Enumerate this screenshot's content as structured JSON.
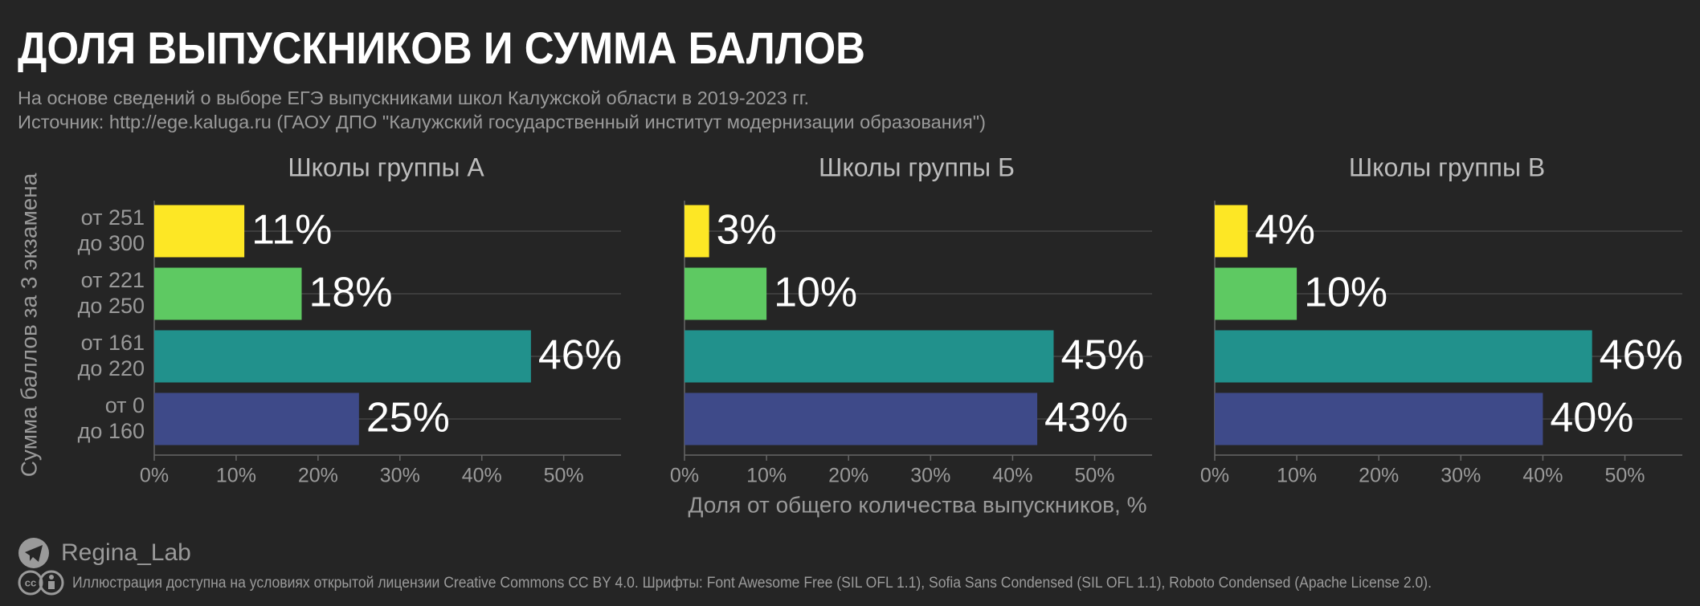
{
  "header": {
    "title": "ДОЛЯ ВЫПУСКНИКОВ И СУММА БАЛЛОВ",
    "subtitle": "На основе сведений о выборе ЕГЭ выпускниками школ Калужской области в 2019-2023 гг.",
    "source": "Источник: http://ege.kaluga.ru (ГАОУ ДПО \"Калужский государственный институт модернизации образования\")"
  },
  "axes": {
    "y_label": "Сумма баллов за 3 экзамена",
    "x_label": "Доля от общего количества выпускников, %"
  },
  "chart_data": [
    {
      "type": "bar",
      "orientation": "horizontal",
      "title": "Школы группы А",
      "categories": [
        [
          "от 251",
          "до 300"
        ],
        [
          "от 221",
          "до 250"
        ],
        [
          "от 161",
          "до 220"
        ],
        [
          "от 0",
          "до 160"
        ]
      ],
      "values": [
        11,
        18,
        46,
        25
      ],
      "value_labels": [
        "11%",
        "18%",
        "46%",
        "25%"
      ],
      "colors": [
        "#fde725",
        "#5ec962",
        "#21918c",
        "#3e4a89"
      ],
      "xlim": [
        0,
        57
      ],
      "xticks": [
        {
          "value": 0,
          "label": "0%"
        },
        {
          "value": 10,
          "label": "10%"
        },
        {
          "value": 20,
          "label": "20%"
        },
        {
          "value": 30,
          "label": "30%"
        },
        {
          "value": 40,
          "label": "40%"
        },
        {
          "value": 50,
          "label": "50%"
        }
      ],
      "grid": true
    },
    {
      "type": "bar",
      "orientation": "horizontal",
      "title": "Школы группы Б",
      "categories": [
        [
          "от 251",
          "до 300"
        ],
        [
          "от 221",
          "до 250"
        ],
        [
          "от 161",
          "до 220"
        ],
        [
          "от 0",
          "до 160"
        ]
      ],
      "values": [
        3,
        10,
        45,
        43
      ],
      "value_labels": [
        "3%",
        "10%",
        "45%",
        "43%"
      ],
      "colors": [
        "#fde725",
        "#5ec962",
        "#21918c",
        "#3e4a89"
      ],
      "xlim": [
        0,
        57
      ],
      "xticks": [
        {
          "value": 0,
          "label": "0%"
        },
        {
          "value": 10,
          "label": "10%"
        },
        {
          "value": 20,
          "label": "20%"
        },
        {
          "value": 30,
          "label": "30%"
        },
        {
          "value": 40,
          "label": "40%"
        },
        {
          "value": 50,
          "label": "50%"
        }
      ],
      "grid": true
    },
    {
      "type": "bar",
      "orientation": "horizontal",
      "title": "Школы группы В",
      "categories": [
        [
          "от 251",
          "до 300"
        ],
        [
          "от 221",
          "до 250"
        ],
        [
          "от 161",
          "до 220"
        ],
        [
          "от 0",
          "до 160"
        ]
      ],
      "values": [
        4,
        10,
        46,
        40
      ],
      "value_labels": [
        "4%",
        "10%",
        "46%",
        "40%"
      ],
      "colors": [
        "#fde725",
        "#5ec962",
        "#21918c",
        "#3e4a89"
      ],
      "xlim": [
        0,
        57
      ],
      "xticks": [
        {
          "value": 0,
          "label": "0%"
        },
        {
          "value": 10,
          "label": "10%"
        },
        {
          "value": 20,
          "label": "20%"
        },
        {
          "value": 30,
          "label": "30%"
        },
        {
          "value": 40,
          "label": "40%"
        },
        {
          "value": 50,
          "label": "50%"
        }
      ],
      "grid": true
    }
  ],
  "footer": {
    "brand": "Regina_Lab",
    "license": "Иллюстрация доступна на условиях открытой лицензии Creative Commons CC BY 4.0.  Шрифты: Font Awesome Free (SIL OFL 1.1), Sofia Sans Condensed (SIL OFL 1.1), Roboto Condensed (Apache License 2.0)."
  }
}
